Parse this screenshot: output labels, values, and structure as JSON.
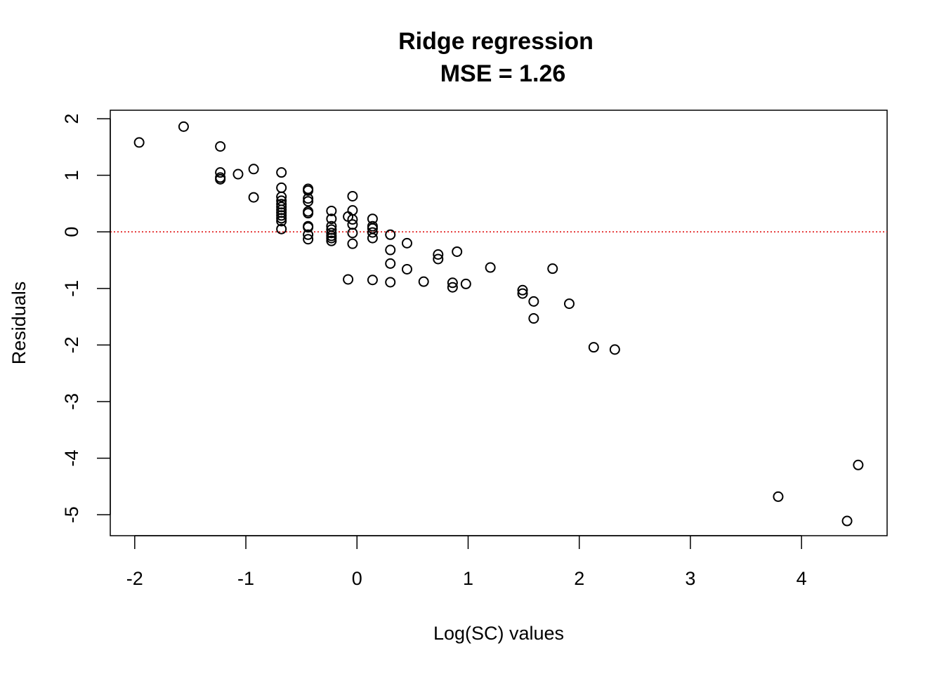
{
  "chart_data": {
    "type": "scatter",
    "title": "Ridge regression",
    "subtitle": "MSE = 1.26",
    "xlabel": "Log(SC) values",
    "ylabel": "Residuals",
    "xlim": [
      -2.22,
      4.77
    ],
    "ylim": [
      -5.37,
      2.15
    ],
    "xticks": [
      -2,
      -1,
      0,
      1,
      2,
      3,
      4
    ],
    "yticks": [
      2,
      1,
      0,
      -1,
      -2,
      -3,
      -4,
      -5
    ],
    "grid": false,
    "reference_line": {
      "y": 0,
      "color": "#dd0000",
      "style": "dotted"
    },
    "points": [
      {
        "x": -1.96,
        "y": 1.58
      },
      {
        "x": -1.56,
        "y": 1.86
      },
      {
        "x": -1.23,
        "y": 1.51
      },
      {
        "x": -1.23,
        "y": 1.05
      },
      {
        "x": -1.23,
        "y": 0.96
      },
      {
        "x": -1.23,
        "y": 0.93
      },
      {
        "x": -1.07,
        "y": 1.02
      },
      {
        "x": -0.93,
        "y": 1.11
      },
      {
        "x": -0.93,
        "y": 0.61
      },
      {
        "x": -0.68,
        "y": 1.05
      },
      {
        "x": -0.68,
        "y": 0.78
      },
      {
        "x": -0.68,
        "y": 0.62
      },
      {
        "x": -0.68,
        "y": 0.55
      },
      {
        "x": -0.68,
        "y": 0.49
      },
      {
        "x": -0.68,
        "y": 0.44
      },
      {
        "x": -0.68,
        "y": 0.39
      },
      {
        "x": -0.68,
        "y": 0.34
      },
      {
        "x": -0.68,
        "y": 0.29
      },
      {
        "x": -0.68,
        "y": 0.24
      },
      {
        "x": -0.68,
        "y": 0.19
      },
      {
        "x": -0.68,
        "y": 0.05
      },
      {
        "x": -0.44,
        "y": 0.76
      },
      {
        "x": -0.44,
        "y": 0.73
      },
      {
        "x": -0.44,
        "y": 0.59
      },
      {
        "x": -0.44,
        "y": 0.54
      },
      {
        "x": -0.44,
        "y": 0.36
      },
      {
        "x": -0.44,
        "y": 0.33
      },
      {
        "x": -0.44,
        "y": 0.1
      },
      {
        "x": -0.44,
        "y": 0.08
      },
      {
        "x": -0.44,
        "y": -0.05
      },
      {
        "x": -0.44,
        "y": -0.13
      },
      {
        "x": -0.23,
        "y": 0.37
      },
      {
        "x": -0.23,
        "y": 0.23
      },
      {
        "x": -0.23,
        "y": 0.1
      },
      {
        "x": -0.23,
        "y": 0.04
      },
      {
        "x": -0.23,
        "y": -0.02
      },
      {
        "x": -0.23,
        "y": -0.07
      },
      {
        "x": -0.23,
        "y": -0.11
      },
      {
        "x": -0.23,
        "y": -0.16
      },
      {
        "x": -0.08,
        "y": 0.27
      },
      {
        "x": -0.08,
        "y": -0.84
      },
      {
        "x": -0.04,
        "y": 0.63
      },
      {
        "x": -0.04,
        "y": 0.38
      },
      {
        "x": -0.04,
        "y": 0.22
      },
      {
        "x": -0.04,
        "y": 0.13
      },
      {
        "x": -0.04,
        "y": -0.02
      },
      {
        "x": -0.04,
        "y": -0.21
      },
      {
        "x": 0.14,
        "y": 0.23
      },
      {
        "x": 0.14,
        "y": 0.1
      },
      {
        "x": 0.14,
        "y": 0.06
      },
      {
        "x": 0.14,
        "y": -0.01
      },
      {
        "x": 0.14,
        "y": -0.11
      },
      {
        "x": 0.14,
        "y": -0.85
      },
      {
        "x": 0.3,
        "y": -0.05
      },
      {
        "x": 0.3,
        "y": -0.32
      },
      {
        "x": 0.3,
        "y": -0.56
      },
      {
        "x": 0.3,
        "y": -0.89
      },
      {
        "x": 0.45,
        "y": -0.2
      },
      {
        "x": 0.45,
        "y": -0.66
      },
      {
        "x": 0.6,
        "y": -0.88
      },
      {
        "x": 0.73,
        "y": -0.4
      },
      {
        "x": 0.73,
        "y": -0.48
      },
      {
        "x": 0.86,
        "y": -0.9
      },
      {
        "x": 0.86,
        "y": -0.98
      },
      {
        "x": 0.9,
        "y": -0.35
      },
      {
        "x": 0.98,
        "y": -0.92
      },
      {
        "x": 1.2,
        "y": -0.63
      },
      {
        "x": 1.49,
        "y": -1.03
      },
      {
        "x": 1.49,
        "y": -1.09
      },
      {
        "x": 1.59,
        "y": -1.23
      },
      {
        "x": 1.59,
        "y": -1.53
      },
      {
        "x": 1.76,
        "y": -0.65
      },
      {
        "x": 1.91,
        "y": -1.27
      },
      {
        "x": 2.13,
        "y": -2.04
      },
      {
        "x": 2.32,
        "y": -2.08
      },
      {
        "x": 3.79,
        "y": -4.68
      },
      {
        "x": 4.41,
        "y": -5.11
      },
      {
        "x": 4.51,
        "y": -4.12
      }
    ]
  }
}
